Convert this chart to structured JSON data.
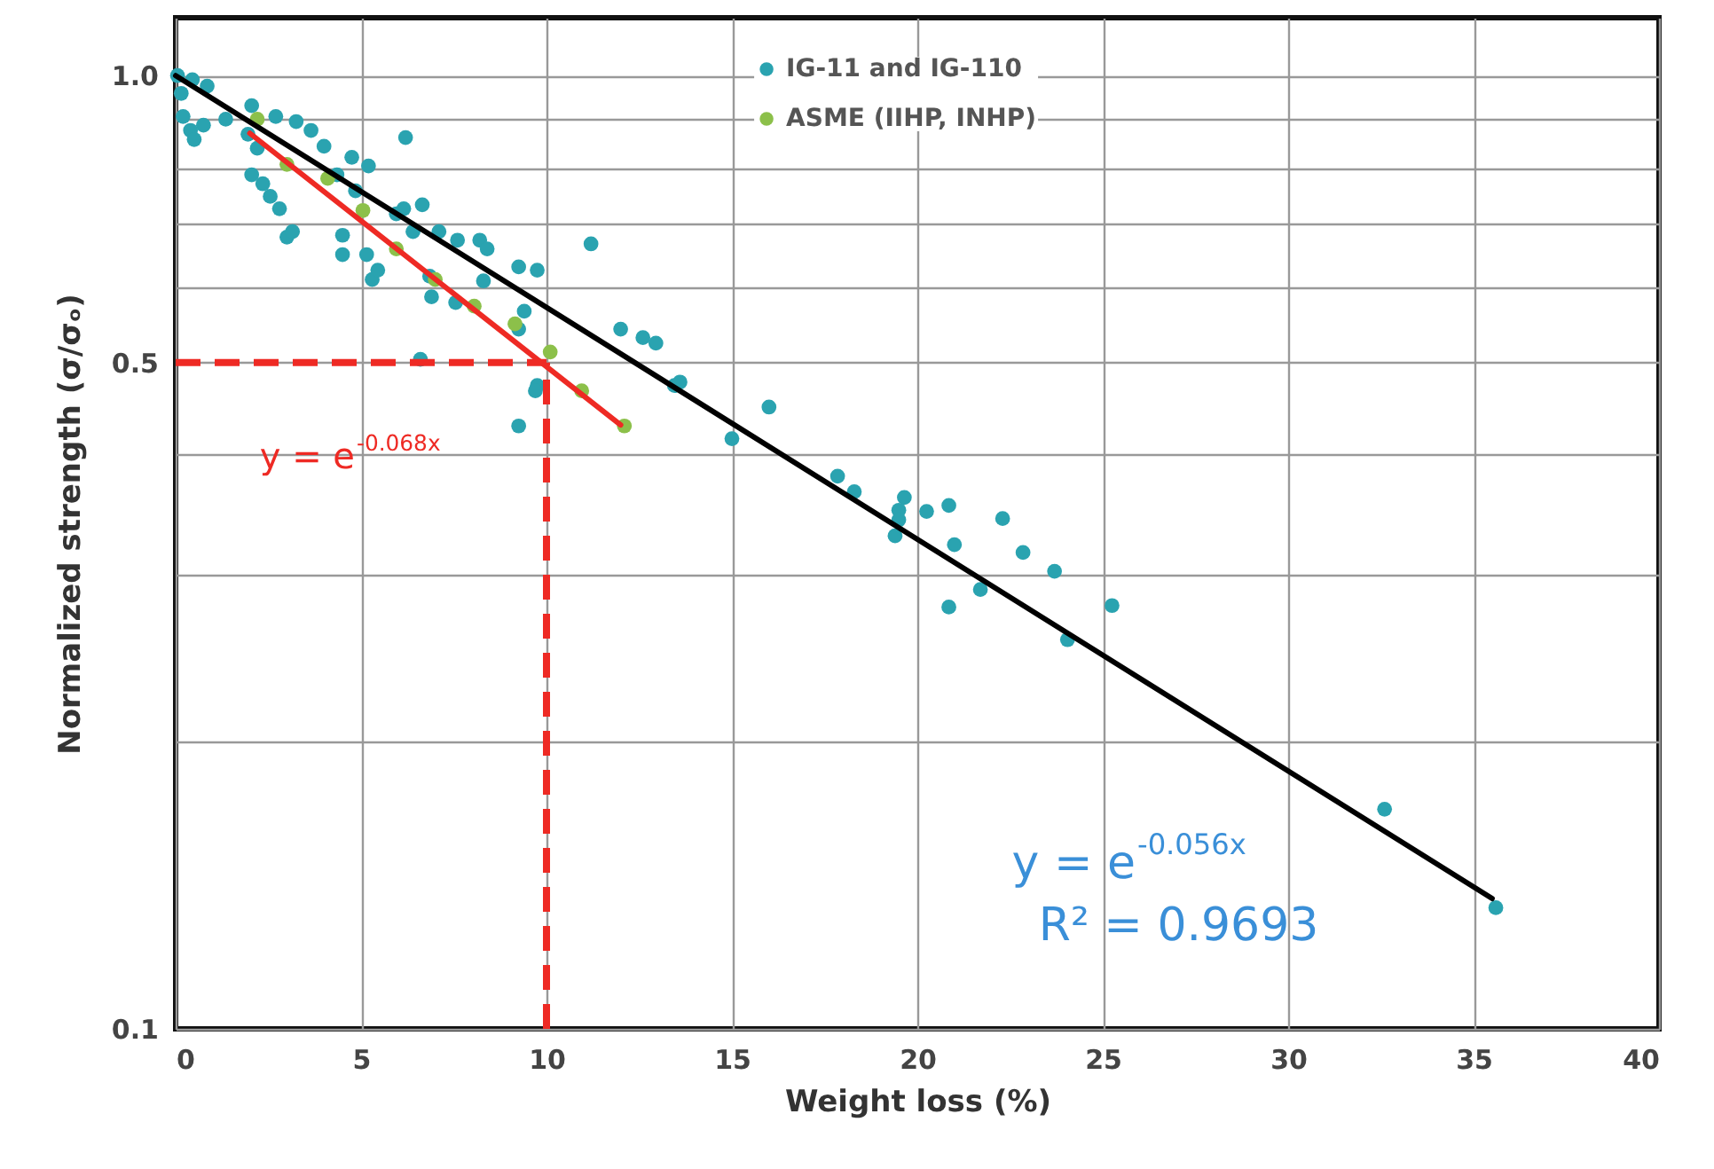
{
  "chart_data": {
    "type": "scatter",
    "xlabel": "Weight loss (%)",
    "ylabel": "Normalized strength (σ/σₒ)",
    "xlim": [
      0,
      40
    ],
    "xticks": [
      0,
      5,
      10,
      15,
      20,
      25,
      30,
      35,
      40
    ],
    "ylim": [
      0.1,
      1.15
    ],
    "yticks": [
      {
        "value": 0.1,
        "label": "0.1"
      },
      {
        "value": 0.2,
        "label": null
      },
      {
        "value": 0.3,
        "label": null
      },
      {
        "value": 0.4,
        "label": null
      },
      {
        "value": 0.5,
        "label": "0.5"
      },
      {
        "value": 0.6,
        "label": null
      },
      {
        "value": 0.7,
        "label": null
      },
      {
        "value": 0.8,
        "label": null
      },
      {
        "value": 0.9,
        "label": null
      },
      {
        "value": 1.0,
        "label": "1.0"
      }
    ],
    "log": "y",
    "grid": true,
    "legend": "top",
    "series": [
      {
        "name": "IG-11 and IG-110",
        "color": "#2aa3b0",
        "marker": "circle",
        "x": [
          0.05,
          0.45,
          0.85,
          0.15,
          0.2,
          0.4,
          0.5,
          0.75,
          1.35,
          2.05,
          2.7,
          3.25,
          3.65,
          4.0,
          1.95,
          2.2,
          2.05,
          2.35,
          2.55,
          2.8,
          3.0,
          3.15,
          6.2,
          4.75,
          5.2,
          4.35,
          4.85,
          4.5,
          4.5,
          5.15,
          5.3,
          5.45,
          5.95,
          6.15,
          6.65,
          6.4,
          7.1,
          6.85,
          6.9,
          7.6,
          8.2,
          8.4,
          7.55,
          8.3,
          9.25,
          9.75,
          9.4,
          9.25,
          9.75,
          9.7,
          9.25,
          6.6,
          11.2,
          12.0,
          12.6,
          12.95,
          13.6,
          13.45,
          15.0,
          16.0,
          17.85,
          18.3,
          19.65,
          19.5,
          19.5,
          19.4,
          20.25,
          20.85,
          21.0,
          22.3,
          22.85,
          23.7,
          20.85,
          21.7,
          25.25,
          24.05,
          32.6,
          35.6
        ],
        "values": [
          1.0,
          0.99,
          0.975,
          0.958,
          0.906,
          0.876,
          0.857,
          0.887,
          0.9,
          0.93,
          0.906,
          0.895,
          0.876,
          0.843,
          0.868,
          0.839,
          0.787,
          0.77,
          0.747,
          0.725,
          0.677,
          0.686,
          0.861,
          0.821,
          0.804,
          0.787,
          0.757,
          0.68,
          0.649,
          0.649,
          0.611,
          0.625,
          0.716,
          0.725,
          0.732,
          0.686,
          0.686,
          0.616,
          0.586,
          0.672,
          0.672,
          0.658,
          0.578,
          0.609,
          0.63,
          0.625,
          0.566,
          0.542,
          0.473,
          0.467,
          0.429,
          0.504,
          0.666,
          0.542,
          0.531,
          0.524,
          0.477,
          0.473,
          0.416,
          0.449,
          0.38,
          0.366,
          0.361,
          0.35,
          0.342,
          0.329,
          0.349,
          0.354,
          0.322,
          0.343,
          0.316,
          0.302,
          0.277,
          0.289,
          0.278,
          0.256,
          0.17,
          0.134
        ]
      },
      {
        "name": "ASME (IIHP, INHP)",
        "color": "#8cc04a",
        "marker": "circle",
        "x": [
          2.2,
          3.0,
          4.1,
          5.05,
          5.95,
          7.0,
          8.05,
          9.15,
          10.1,
          10.95,
          12.1
        ],
        "values": [
          0.9,
          0.807,
          0.78,
          0.722,
          0.658,
          0.611,
          0.573,
          0.549,
          0.513,
          0.467,
          0.429
        ]
      },
      {
        "type": "line",
        "color": "#000000",
        "x": [
          0,
          35.5
        ],
        "values": [
          1.0,
          0.137
        ]
      },
      {
        "type": "line",
        "color": "#ee2a24",
        "x": [
          2,
          12
        ],
        "values": [
          0.87,
          0.43
        ]
      }
    ],
    "ref_lines": [
      {
        "axis": "y",
        "value": 0.5,
        "color": "#ee2a24",
        "line_style": "dashed"
      },
      {
        "axis": "x",
        "value": 10,
        "color": "#ee2a24",
        "line_style": "dashed"
      }
    ],
    "annotations": [
      "y = e$^{-0.068x}$",
      "y = e$^{-0.056x}$",
      "R² = 0.9693"
    ]
  }
}
